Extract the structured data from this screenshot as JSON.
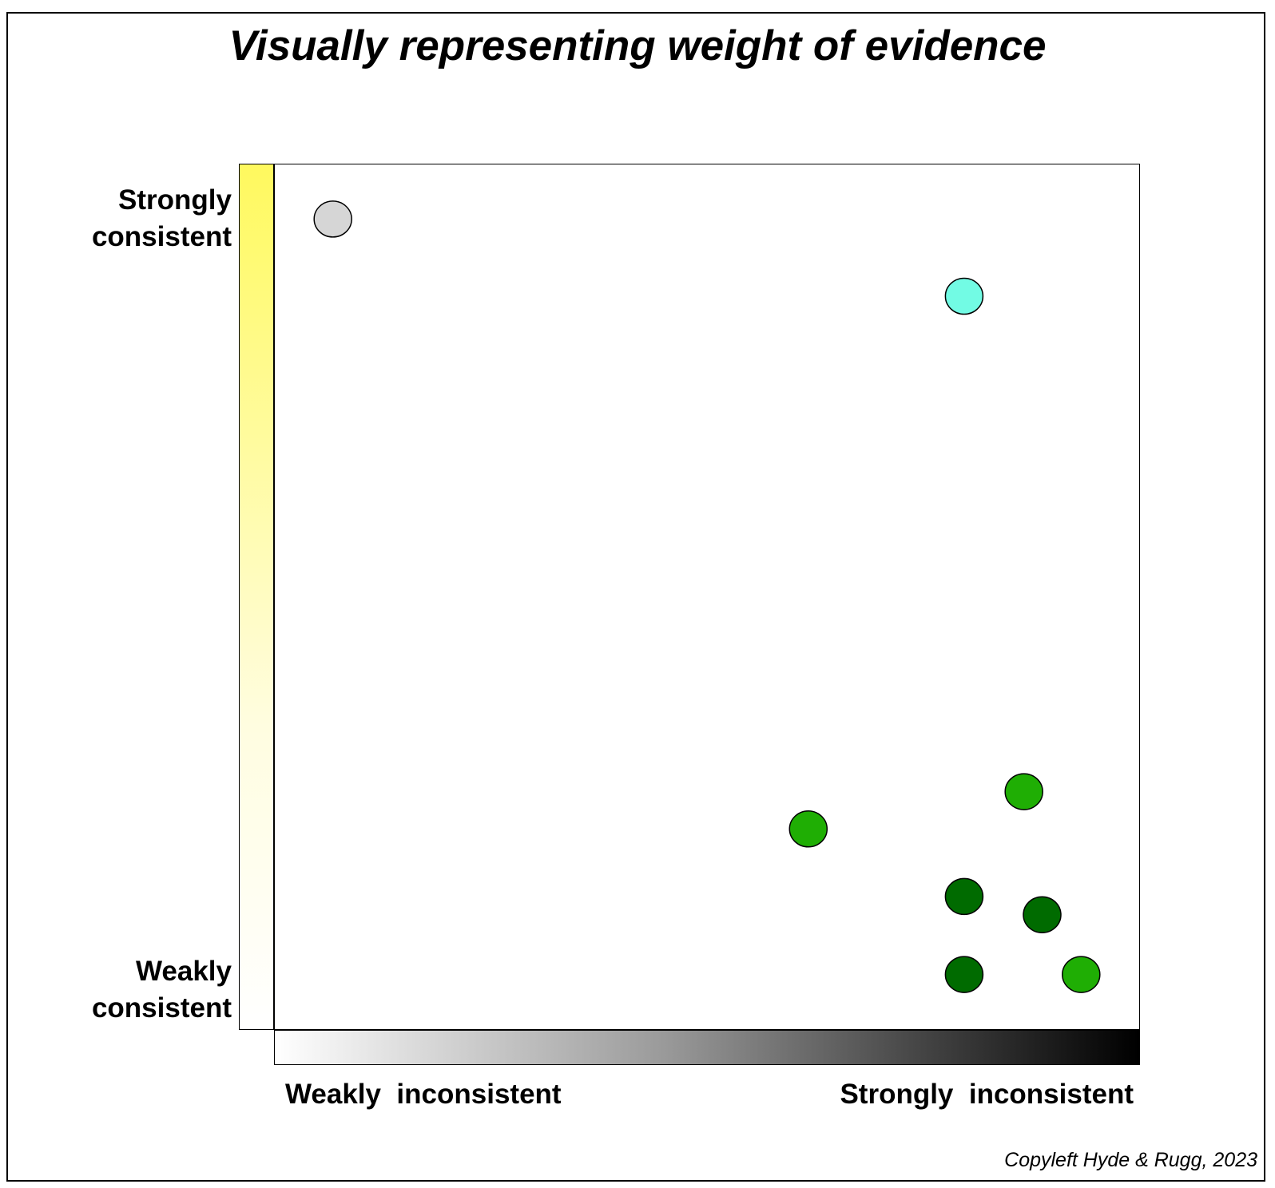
{
  "title": "Visually representing weight of evidence",
  "axes": {
    "y": {
      "top_label": [
        "Strongly",
        "consistent"
      ],
      "bottom_label": [
        "Weakly",
        "consistent"
      ],
      "gradient_colors": [
        "#fff95e",
        "#ffffff"
      ]
    },
    "x": {
      "left_label": "Weakly  inconsistent",
      "right_label": "Strongly  inconsistent",
      "gradient_colors": [
        "#ffffff",
        "#000000"
      ]
    }
  },
  "copyright": "Copyleft Hyde & Rugg, 2023",
  "chart_data": {
    "type": "scatter",
    "title": "Visually representing weight of evidence",
    "xlabel": "Weakly inconsistent → Strongly inconsistent",
    "ylabel": "Weakly consistent → Strongly consistent",
    "xlim": [
      0,
      1
    ],
    "ylim": [
      0,
      1
    ],
    "points": [
      {
        "x": 0.068,
        "y": 0.936,
        "color": "#d6d6d6"
      },
      {
        "x": 0.797,
        "y": 0.847,
        "color": "#72fbe4"
      },
      {
        "x": 0.866,
        "y": 0.275,
        "color": "#1fae04"
      },
      {
        "x": 0.617,
        "y": 0.232,
        "color": "#1fae04"
      },
      {
        "x": 0.797,
        "y": 0.154,
        "color": "#006b00"
      },
      {
        "x": 0.887,
        "y": 0.133,
        "color": "#006b00"
      },
      {
        "x": 0.797,
        "y": 0.064,
        "color": "#006b00"
      },
      {
        "x": 0.932,
        "y": 0.064,
        "color": "#1fae04"
      }
    ]
  }
}
